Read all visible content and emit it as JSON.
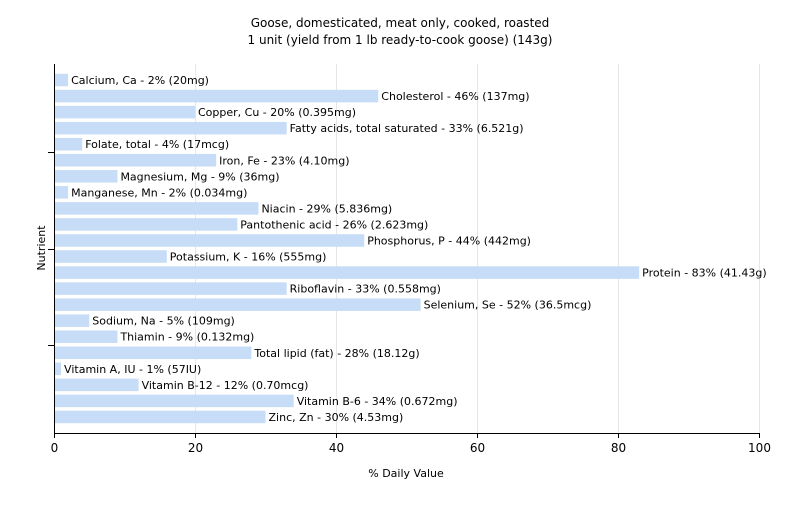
{
  "chart_data": {
    "type": "bar",
    "orientation": "horizontal",
    "title": "Goose, domesticated, meat only, cooked, roasted",
    "subtitle": "1 unit (yield from 1 lb ready-to-cook goose) (143g)",
    "xlabel": "% Daily Value",
    "ylabel": "Nutrient",
    "xlim": [
      0,
      100
    ],
    "xticks": [
      0,
      20,
      40,
      60,
      80,
      100
    ],
    "grid": true,
    "bar_color": "#c6dcf7",
    "categories": [
      "Calcium, Ca",
      "Cholesterol",
      "Copper, Cu",
      "Fatty acids, total saturated",
      "Folate, total",
      "Iron, Fe",
      "Magnesium, Mg",
      "Manganese, Mn",
      "Niacin",
      "Pantothenic acid",
      "Phosphorus, P",
      "Potassium, K",
      "Protein",
      "Riboflavin",
      "Selenium, Se",
      "Sodium, Na",
      "Thiamin",
      "Total lipid (fat)",
      "Vitamin A, IU",
      "Vitamin B-12",
      "Vitamin B-6",
      "Zinc, Zn"
    ],
    "values": [
      2,
      46,
      20,
      33,
      4,
      23,
      9,
      2,
      29,
      26,
      44,
      16,
      83,
      33,
      52,
      5,
      9,
      28,
      1,
      12,
      34,
      30
    ],
    "labels": [
      "Calcium, Ca - 2% (20mg)",
      "Cholesterol - 46% (137mg)",
      "Copper, Cu - 20% (0.395mg)",
      "Fatty acids, total saturated - 33% (6.521g)",
      "Folate, total - 4% (17mcg)",
      "Iron, Fe - 23% (4.10mg)",
      "Magnesium, Mg - 9% (36mg)",
      "Manganese, Mn - 2% (0.034mg)",
      "Niacin - 29% (5.836mg)",
      "Pantothenic acid - 26% (2.623mg)",
      "Phosphorus, P - 44% (442mg)",
      "Potassium, K - 16% (555mg)",
      "Protein - 83% (41.43g)",
      "Riboflavin - 33% (0.558mg)",
      "Selenium, Se - 52% (36.5mcg)",
      "Sodium, Na - 5% (109mg)",
      "Thiamin - 9% (0.132mg)",
      "Total lipid (fat) - 28% (18.12g)",
      "Vitamin A, IU - 1% (57IU)",
      "Vitamin B-12 - 12% (0.70mcg)",
      "Vitamin B-6 - 34% (0.672mg)",
      "Zinc, Zn - 30% (4.53mg)"
    ]
  }
}
